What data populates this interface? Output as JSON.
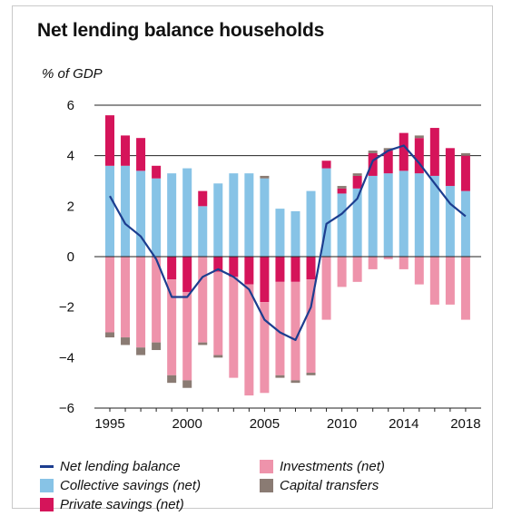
{
  "title": "Net lending balance households",
  "chart_data": {
    "type": "bar",
    "stacked": true,
    "y_unit_label": "% of GDP",
    "ylim": [
      -6,
      6
    ],
    "yticks": [
      6,
      4,
      2,
      0,
      -2,
      -4,
      -6
    ],
    "gridlines_at": [
      6,
      4
    ],
    "xtick_labels": [
      {
        "year": 1995,
        "label": "1995"
      },
      {
        "year": 2000,
        "label": "2000"
      },
      {
        "year": 2005,
        "label": "2005"
      },
      {
        "year": 2010,
        "label": "2010"
      },
      {
        "year": 2014,
        "label": "2014"
      },
      {
        "year": 2018,
        "label": "2018"
      }
    ],
    "years": [
      1995,
      1996,
      1997,
      1998,
      1999,
      2000,
      2001,
      2002,
      2003,
      2004,
      2005,
      2006,
      2007,
      2008,
      2009,
      2010,
      2011,
      2012,
      2013,
      2014,
      2015,
      2016,
      2017,
      2018
    ],
    "colors": {
      "collective": "#87c3e6",
      "private": "#d5145a",
      "investments": "#ee93ab",
      "capital": "#8a7b73",
      "line": "#1c3d8f"
    },
    "series": [
      {
        "key": "collective",
        "name": "Collective savings (net)",
        "values": [
          3.6,
          3.6,
          3.4,
          3.1,
          3.3,
          3.5,
          2.0,
          2.9,
          3.3,
          3.3,
          3.1,
          1.9,
          1.8,
          2.6,
          3.5,
          2.5,
          2.7,
          3.2,
          3.3,
          3.4,
          3.3,
          3.2,
          2.8,
          2.6
        ]
      },
      {
        "key": "private",
        "name": "Private savings (net)",
        "values": [
          2.0,
          1.2,
          1.3,
          0.5,
          -0.9,
          -1.4,
          0.6,
          -0.6,
          -0.8,
          -1.1,
          -1.8,
          -1.0,
          -1.0,
          -0.9,
          0.3,
          0.2,
          0.5,
          0.9,
          0.9,
          1.5,
          1.4,
          1.9,
          1.5,
          1.4
        ]
      },
      {
        "key": "investments",
        "name": "Investments (net)",
        "values": [
          -3.0,
          -3.2,
          -3.6,
          -3.4,
          -3.8,
          -3.5,
          -3.4,
          -3.3,
          -4.0,
          -4.4,
          -3.6,
          -3.7,
          -3.9,
          -3.7,
          -2.5,
          -1.2,
          -1.0,
          -0.5,
          -0.1,
          -0.5,
          -1.1,
          -1.9,
          -1.9,
          -2.5
        ]
      },
      {
        "key": "capital",
        "name": "Capital transfers",
        "values": [
          -0.2,
          -0.3,
          -0.3,
          -0.3,
          -0.3,
          -0.3,
          -0.1,
          -0.1,
          0.0,
          0.0,
          0.1,
          -0.1,
          -0.1,
          -0.1,
          0.0,
          0.1,
          0.1,
          0.1,
          0.1,
          0.0,
          0.1,
          0.0,
          0.0,
          0.1
        ]
      }
    ],
    "line": {
      "name": "Net lending balance",
      "values": [
        2.4,
        1.3,
        0.8,
        -0.1,
        -1.6,
        -1.6,
        -0.8,
        -0.5,
        -0.8,
        -1.3,
        -2.5,
        -3.0,
        -3.3,
        -2.0,
        1.3,
        1.7,
        2.3,
        3.8,
        4.2,
        4.4,
        3.7,
        2.9,
        2.1,
        1.6
      ]
    },
    "legend": {
      "placement": "bottom",
      "items": [
        {
          "key": "line",
          "label": "Net lending balance"
        },
        {
          "key": "investments",
          "label": "Investments (net)"
        },
        {
          "key": "collective",
          "label": "Collective savings (net)"
        },
        {
          "key": "capital",
          "label": "Capital transfers"
        },
        {
          "key": "private",
          "label": "Private savings (net)"
        }
      ]
    }
  }
}
